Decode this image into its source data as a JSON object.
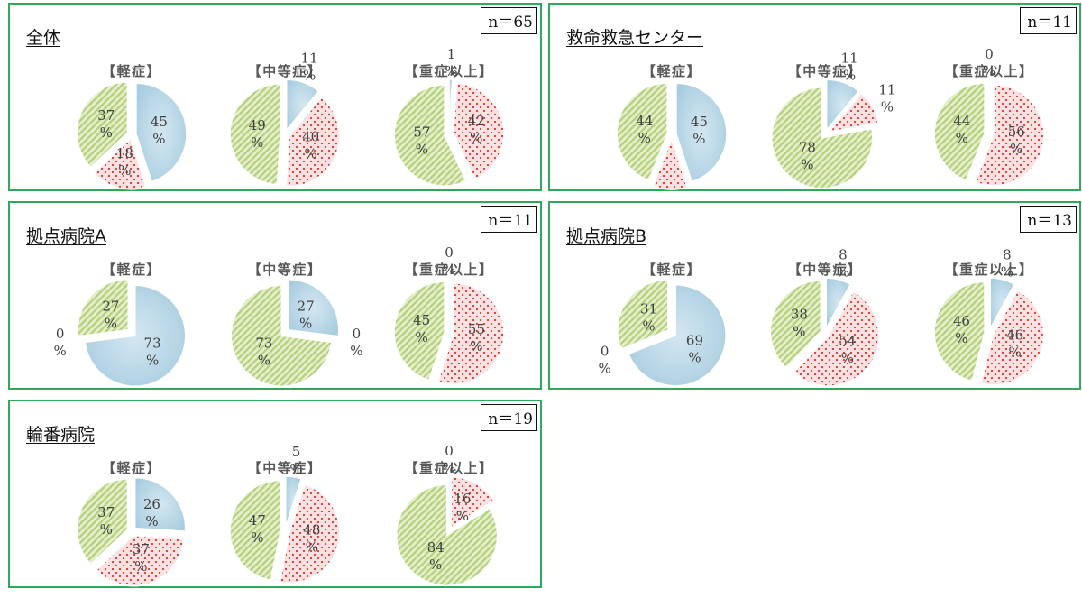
{
  "colors": {
    "light": "#a9cde0",
    "moderate": "#f4b6b6",
    "severe": "#b5cf7b"
  },
  "chart_data": [
    {
      "type": "pie",
      "title": "全体",
      "n_label": "n＝65",
      "pies": [
        {
          "label": "【軽症】",
          "values": {
            "light": 45,
            "moderate": 18,
            "severe": 37
          }
        },
        {
          "label": "【中等症】",
          "values": {
            "light": 11,
            "moderate": 40,
            "severe": 49
          }
        },
        {
          "label": "【重症以上】",
          "values": {
            "light": 1,
            "moderate": 42,
            "severe": 57
          }
        }
      ]
    },
    {
      "type": "pie",
      "title": "救命救急センター",
      "n_label": "n＝11",
      "pies": [
        {
          "label": "【軽症】",
          "values": {
            "light": 45,
            "moderate": 11,
            "severe": 44
          }
        },
        {
          "label": "【中等症】",
          "values": {
            "light": 11,
            "moderate": 11,
            "severe": 78
          }
        },
        {
          "label": "【重症以上】",
          "values": {
            "light": 0,
            "moderate": 56,
            "severe": 44
          }
        }
      ]
    },
    {
      "type": "pie",
      "title": "拠点病院A",
      "n_label": "n＝11",
      "pies": [
        {
          "label": "【軽症】",
          "values": {
            "light": 73,
            "moderate": 0,
            "severe": 27
          }
        },
        {
          "label": "【中等症】",
          "values": {
            "light": 27,
            "moderate": 0,
            "severe": 73
          }
        },
        {
          "label": "【重症以上】",
          "values": {
            "light": 0,
            "moderate": 55,
            "severe": 45
          }
        }
      ]
    },
    {
      "type": "pie",
      "title": "拠点病院B",
      "n_label": "n＝13",
      "pies": [
        {
          "label": "【軽症】",
          "values": {
            "light": 69,
            "moderate": 0,
            "severe": 31
          }
        },
        {
          "label": "【中等症】",
          "values": {
            "light": 8,
            "moderate": 54,
            "severe": 38
          }
        },
        {
          "label": "【重症以上】",
          "values": {
            "light": 8,
            "moderate": 46,
            "severe": 46
          }
        }
      ]
    },
    {
      "type": "pie",
      "title": "輪番病院",
      "n_label": "n＝19",
      "pies": [
        {
          "label": "【軽症】",
          "values": {
            "light": 26,
            "moderate": 37,
            "severe": 37
          }
        },
        {
          "label": "【中等症】",
          "values": {
            "light": 5,
            "moderate": 48,
            "severe": 47
          }
        },
        {
          "label": "【重症以上】",
          "values": {
            "light": 0,
            "moderate": 16,
            "severe": 84
          }
        }
      ]
    }
  ]
}
